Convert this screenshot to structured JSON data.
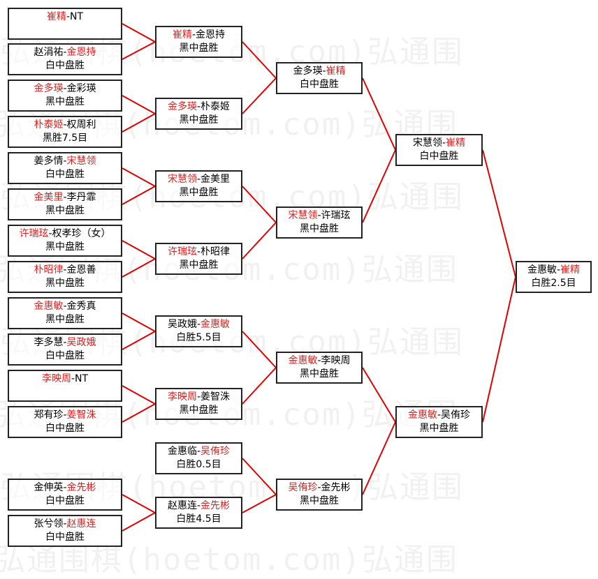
{
  "watermark": "弘通围棋(hoetom.com)弘通围",
  "colors": {
    "winner": "#e02020",
    "line": "#e00000",
    "border": "#222222"
  },
  "rounds": [
    [
      {
        "p1": "崔精",
        "p2": "NT",
        "winner": 1,
        "result": ""
      },
      {
        "p1": "赵涓祐",
        "p2": "金恩持",
        "winner": 2,
        "result": "白中盘胜"
      },
      {
        "p1": "金多瑛",
        "p2": "金彩瑛",
        "winner": 1,
        "result": "黑中盘胜"
      },
      {
        "p1": "朴泰姬",
        "p2": "权周利",
        "winner": 1,
        "result": "黑胜7.5目"
      },
      {
        "p1": "姜多情",
        "p2": "宋慧领",
        "winner": 2,
        "result": "白中盘胜"
      },
      {
        "p1": "金美里",
        "p2": "李丹霏",
        "winner": 1,
        "result": "黑中盘胜"
      },
      {
        "p1": "许瑞玹",
        "p2": "权孝珍（女）",
        "winner": 1,
        "result": "黑中盘胜"
      },
      {
        "p1": "朴昭律",
        "p2": "金恩善",
        "winner": 1,
        "result": "黑中盘胜"
      },
      {
        "p1": "金惠敏",
        "p2": "金秀真",
        "winner": 1,
        "result": "黑中盘胜"
      },
      {
        "p1": "李多慧",
        "p2": "吴政娥",
        "winner": 2,
        "result": "白中盘胜"
      },
      {
        "p1": "李映周",
        "p2": "NT",
        "winner": 1,
        "result": ""
      },
      {
        "p1": "郑有珍",
        "p2": "姜智洙",
        "winner": 2,
        "result": "白中盘胜"
      },
      {
        "p1": "金伸英",
        "p2": "金先彬",
        "winner": 2,
        "result": "白中盘胜"
      },
      {
        "p1": "张兮领",
        "p2": "赵惠连",
        "winner": 2,
        "result": "白中盘胜"
      }
    ],
    [
      {
        "p1": "崔精",
        "p2": "金恩持",
        "winner": 1,
        "result": "黑中盘胜"
      },
      {
        "p1": "金多瑛",
        "p2": "朴泰姬",
        "winner": 1,
        "result": "黑中盘胜"
      },
      {
        "p1": "宋慧领",
        "p2": "金美里",
        "winner": 1,
        "result": "黑中盘胜"
      },
      {
        "p1": "许瑞玹",
        "p2": "朴昭律",
        "winner": 1,
        "result": "黑中盘胜"
      },
      {
        "p1": "吴政娥",
        "p2": "金惠敏",
        "winner": 2,
        "result": "白胜5.5目"
      },
      {
        "p1": "李映周",
        "p2": "姜智洙",
        "winner": 1,
        "result": "黑中盘胜"
      },
      {
        "p1": "金惠临",
        "p2": "吴侑珍",
        "winner": 2,
        "result": "白胜0.5目"
      },
      {
        "p1": "赵惠连",
        "p2": "金先彬",
        "winner": 2,
        "result": "白胜4.5目"
      }
    ],
    [
      {
        "p1": "金多瑛",
        "p2": "崔精",
        "winner": 2,
        "result": "白中盘胜"
      },
      {
        "p1": "宋慧领",
        "p2": "许瑞玹",
        "winner": 1,
        "result": "黑中盘胜"
      },
      {
        "p1": "金惠敏",
        "p2": "李映周",
        "winner": 1,
        "result": "黑中盘胜"
      },
      {
        "p1": "吴侑珍",
        "p2": "金先彬",
        "winner": 1,
        "result": "黑中盘胜"
      }
    ],
    [
      {
        "p1": "宋慧领",
        "p2": "崔精",
        "winner": 2,
        "result": "白中盘胜"
      },
      {
        "p1": "金惠敏",
        "p2": "吴侑珍",
        "winner": 1,
        "result": "黑中盘胜"
      }
    ],
    [
      {
        "p1": "金惠敏",
        "p2": "崔精",
        "winner": 2,
        "result": "白胜2.5目"
      }
    ]
  ]
}
